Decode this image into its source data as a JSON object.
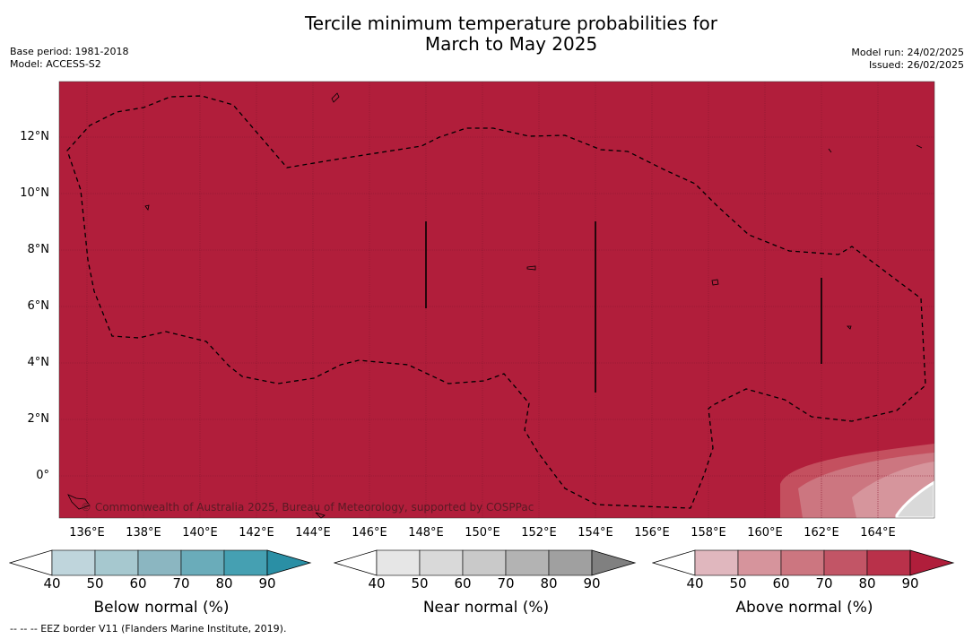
{
  "title_line1": "Tercile minimum temperature probabilities for",
  "title_line2": "March to May 2025",
  "meta_left": [
    "Base period: 1981-2018",
    "Model: ACCESS-S2"
  ],
  "meta_right": [
    "Model run: 24/02/2025",
    "Issued: 26/02/2025"
  ],
  "y_ticks": [
    "12°N",
    "10°N",
    "8°N",
    "6°N",
    "4°N",
    "2°N",
    "0°"
  ],
  "x_ticks": [
    "136°E",
    "138°E",
    "140°E",
    "142°E",
    "144°E",
    "146°E",
    "148°E",
    "150°E",
    "152°E",
    "154°E",
    "156°E",
    "158°E",
    "160°E",
    "162°E",
    "164°E"
  ],
  "copyright": "© Commonwealth of Australia 2025, Bureau of Meteorology, supported by COSPPac",
  "colorbars": [
    {
      "label": "Below normal (%)",
      "ticks": [
        "40",
        "50",
        "60",
        "70",
        "80",
        "90"
      ],
      "colors": [
        "#ffffff",
        "#bfd5dc",
        "#a6c8cf",
        "#8bb6c1",
        "#6aacba",
        "#45a0b2",
        "#2a8fa5"
      ]
    },
    {
      "label": "Near normal (%)",
      "ticks": [
        "40",
        "50",
        "60",
        "70",
        "80",
        "90"
      ],
      "colors": [
        "#ffffff",
        "#e6e6e6",
        "#d9d9d9",
        "#c9c9c9",
        "#b3b3b3",
        "#a0a0a0",
        "#808080"
      ]
    },
    {
      "label": "Above normal (%)",
      "ticks": [
        "40",
        "50",
        "60",
        "70",
        "80",
        "90"
      ],
      "colors": [
        "#ffffff",
        "#e0b7be",
        "#d6949c",
        "#cc7680",
        "#c25566",
        "#b9314a",
        "#b01e3b"
      ]
    }
  ],
  "colors": {
    "map_fill": "#b11e3b",
    "map_patch_1": "#c4505f",
    "map_patch_2": "#cc7680",
    "map_patch_3": "#d6959c",
    "map_patch_4": "#d9d9d9"
  },
  "footer": "--  --  -- EEZ border V11 (Flanders Marine Institute, 2019)."
}
